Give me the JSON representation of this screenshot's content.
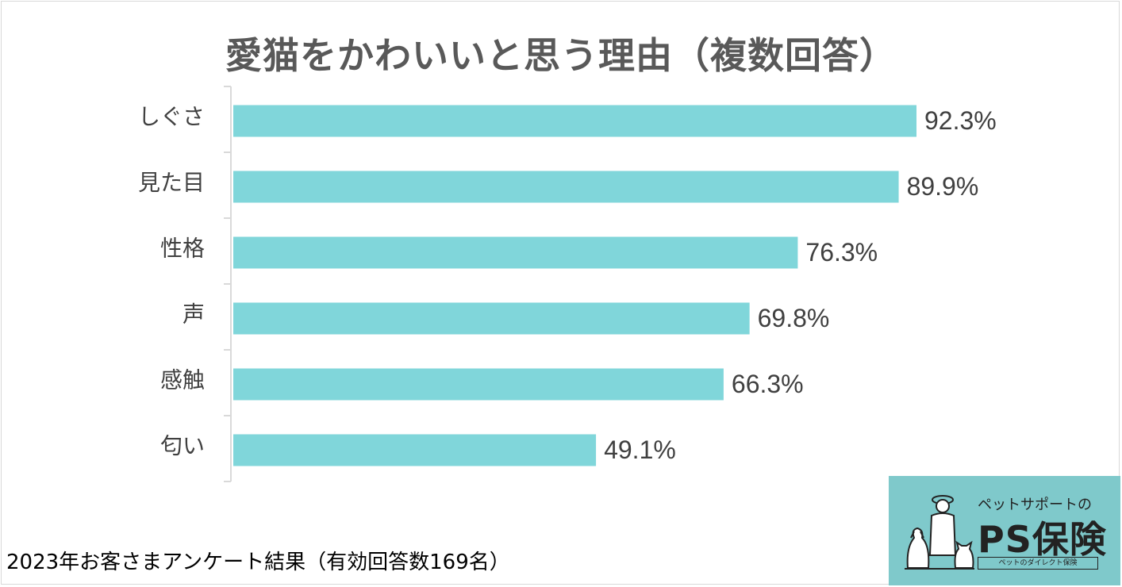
{
  "chart_data": {
    "type": "bar",
    "orientation": "horizontal",
    "title": "愛猫をかわいいと思う理由（複数回答）",
    "categories": [
      "しぐさ",
      "見た目",
      "性格",
      "声",
      "感触",
      "匂い"
    ],
    "values": [
      92.3,
      89.9,
      76.3,
      69.8,
      66.3,
      49.1
    ],
    "value_labels": [
      "92.3%",
      "89.9%",
      "76.3%",
      "69.8%",
      "66.3%",
      "49.1%"
    ],
    "xlim": [
      0,
      100
    ],
    "unit": "%",
    "bar_color": "#80d6da",
    "grid": false,
    "legend": "none"
  },
  "footnote": "2023年お客さまアンケート結果（有効回答数169名）",
  "logo": {
    "tagline": "ペットサポートの",
    "brand": "PS保険",
    "sub": "ペットのダイレクト保険",
    "background": "#7fc9cb"
  }
}
